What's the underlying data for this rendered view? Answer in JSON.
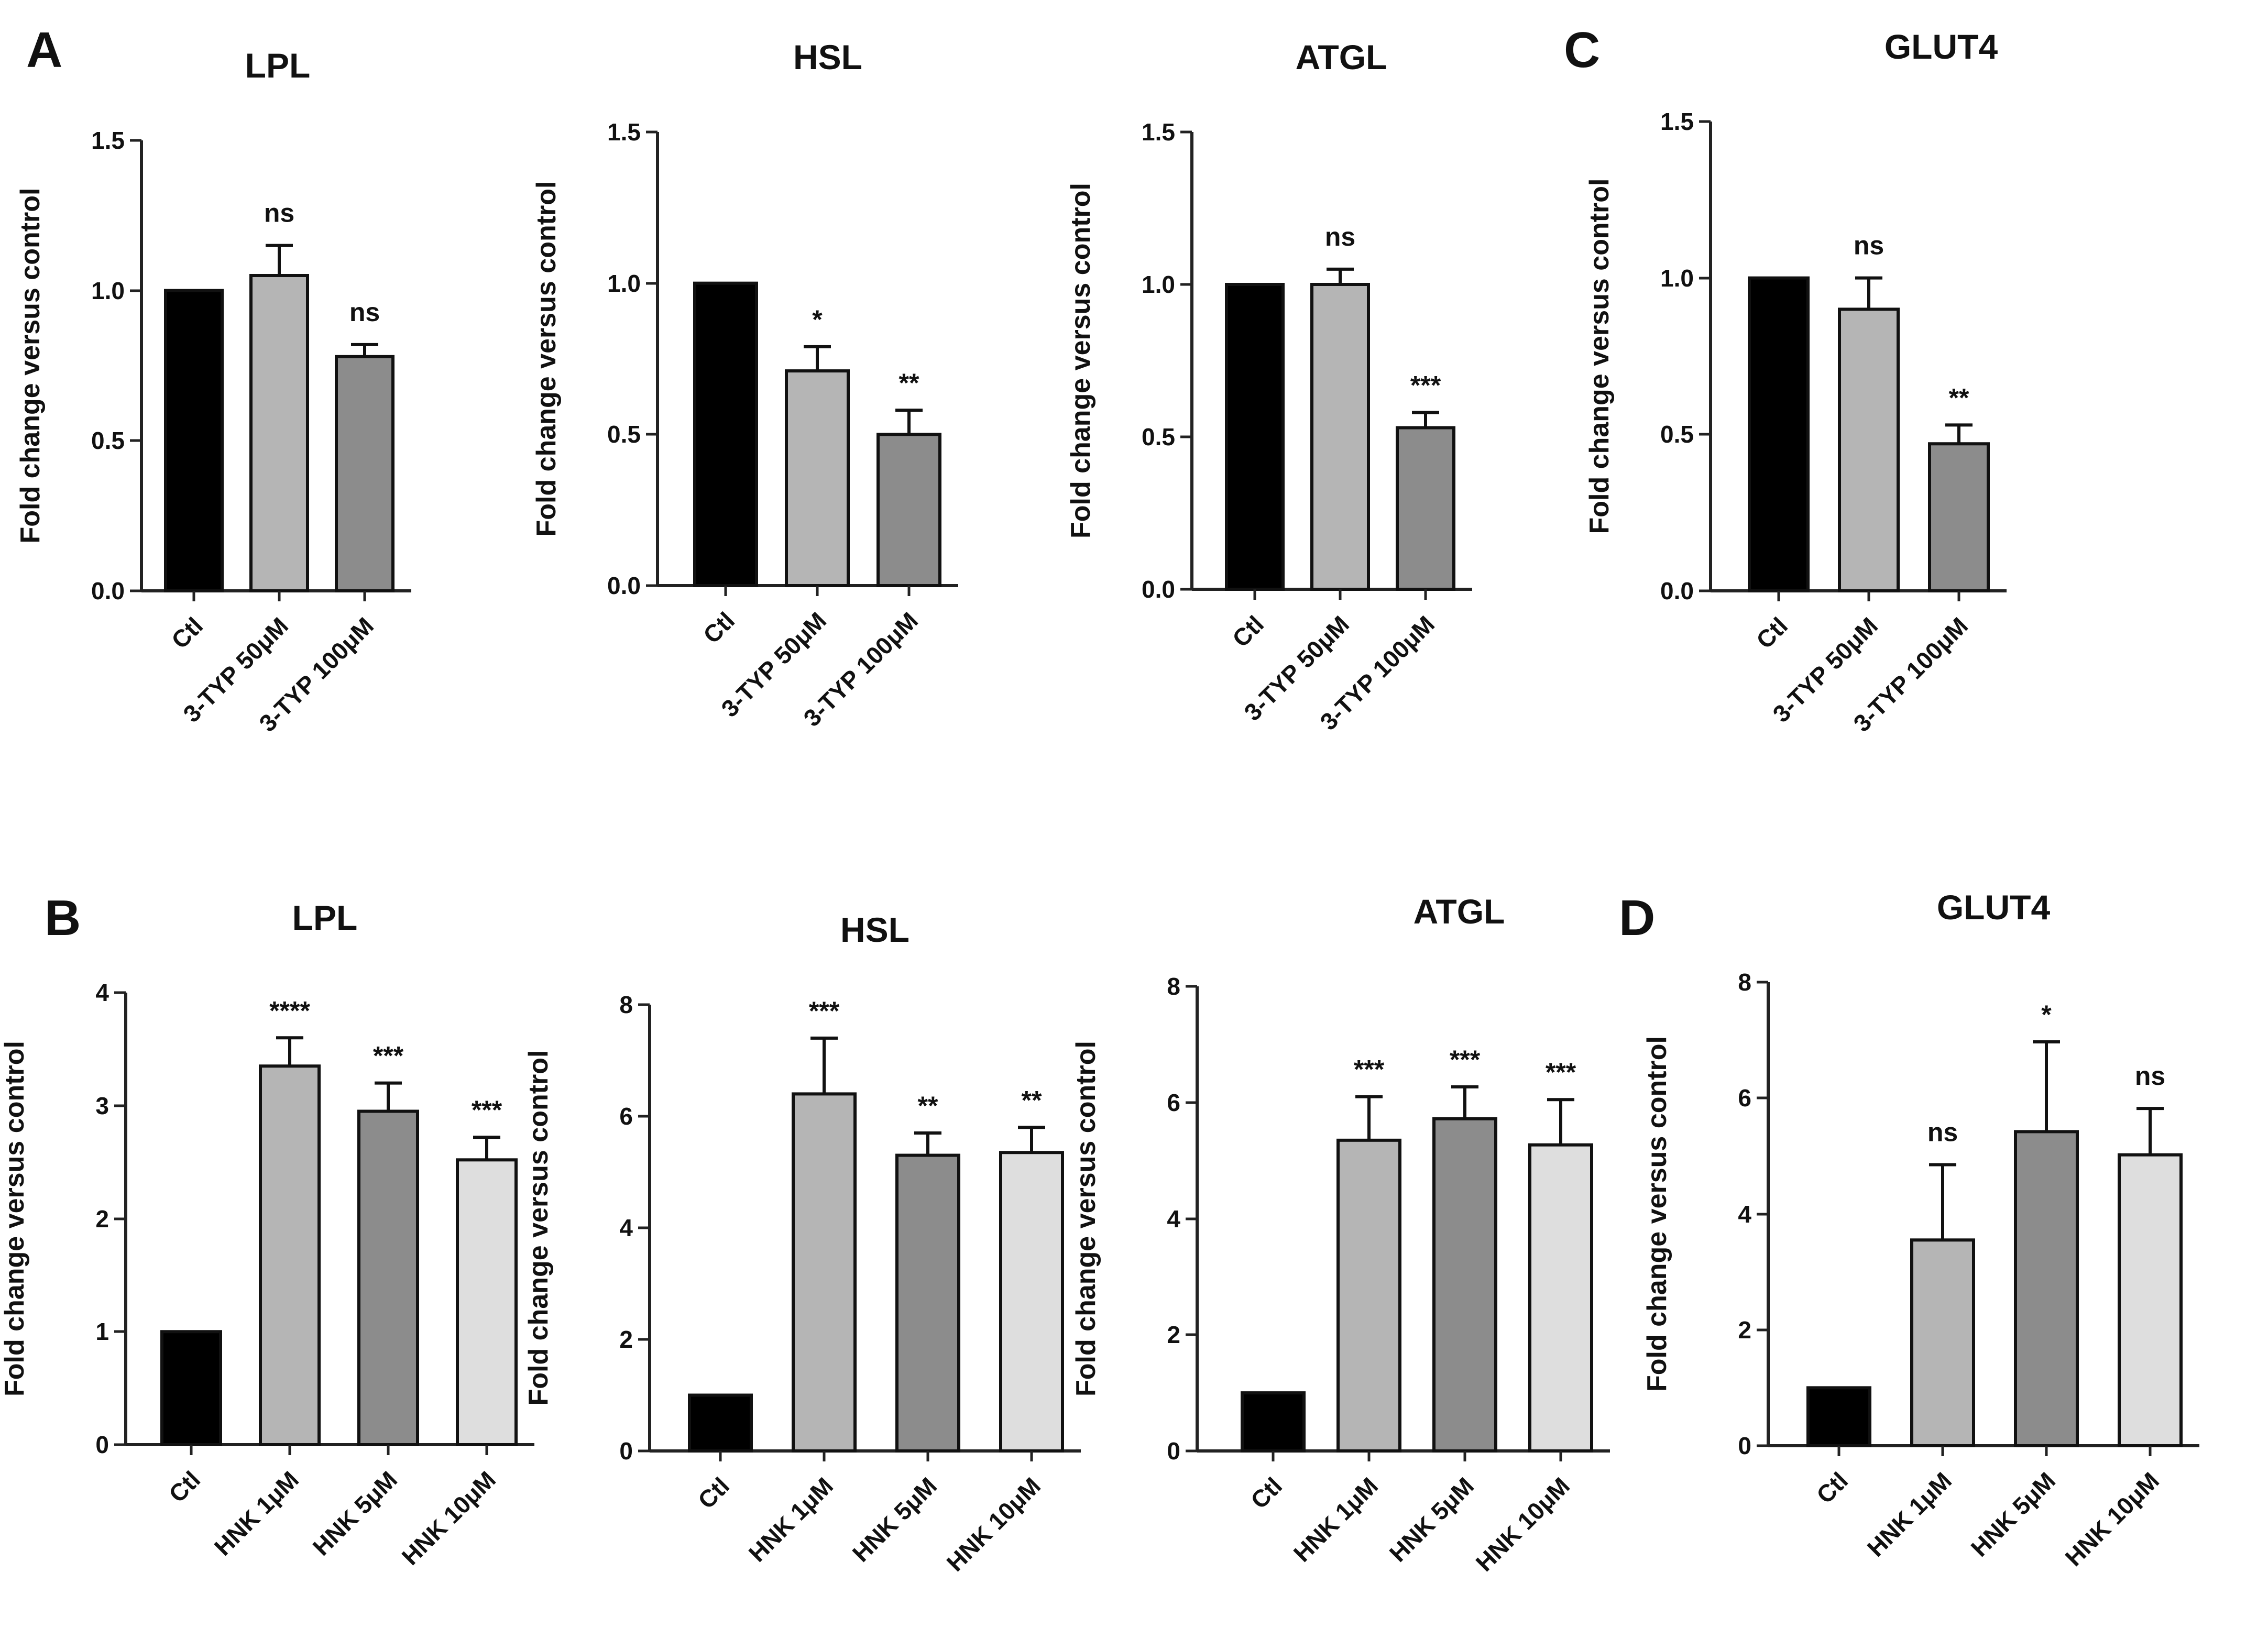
{
  "panel_letters": [
    "A",
    "B",
    "C",
    "D"
  ],
  "chart_data": [
    {
      "panel": "A",
      "type": "bar",
      "title": "LPL",
      "ylabel": "Fold change versus control",
      "ylim": [
        0,
        1.5
      ],
      "yticks": [
        "0.0",
        "0.5",
        "1.0",
        "1.5"
      ],
      "categories": [
        "Ctl",
        "3-TYP 50μM",
        "3-TYP 100μM"
      ],
      "values": [
        1.0,
        1.05,
        0.78
      ],
      "errors": [
        0,
        0.1,
        0.04
      ],
      "significance": [
        "",
        "ns",
        "ns"
      ],
      "colors": [
        "#000000",
        "#b5b5b5",
        "#8c8c8c"
      ]
    },
    {
      "panel": "A",
      "type": "bar",
      "title": "HSL",
      "ylabel": "Fold change versus control",
      "ylim": [
        0,
        1.5
      ],
      "yticks": [
        "0.0",
        "0.5",
        "1.0",
        "1.5"
      ],
      "categories": [
        "Ctl",
        "3-TYP 50μM",
        "3-TYP 100μM"
      ],
      "values": [
        1.0,
        0.71,
        0.5
      ],
      "errors": [
        0,
        0.08,
        0.08
      ],
      "significance": [
        "",
        "*",
        "**"
      ],
      "colors": [
        "#000000",
        "#b5b5b5",
        "#8c8c8c"
      ]
    },
    {
      "panel": "A",
      "type": "bar",
      "title": "ATGL",
      "ylabel": "Fold change versus control",
      "ylim": [
        0,
        1.5
      ],
      "yticks": [
        "0.0",
        "0.5",
        "1.0",
        "1.5"
      ],
      "categories": [
        "Ctl",
        "3-TYP 50μM",
        "3-TYP 100μM"
      ],
      "values": [
        1.0,
        1.0,
        0.53
      ],
      "errors": [
        0,
        0.05,
        0.05
      ],
      "significance": [
        "",
        "ns",
        "***"
      ],
      "colors": [
        "#000000",
        "#b5b5b5",
        "#8c8c8c"
      ]
    },
    {
      "panel": "C",
      "type": "bar",
      "title": "GLUT4",
      "ylabel": "Fold change versus control",
      "ylim": [
        0,
        1.5
      ],
      "yticks": [
        "0.0",
        "0.5",
        "1.0",
        "1.5"
      ],
      "categories": [
        "Ctl",
        "3-TYP 50μM",
        "3-TYP 100μM"
      ],
      "values": [
        1.0,
        0.9,
        0.47
      ],
      "errors": [
        0,
        0.1,
        0.06
      ],
      "significance": [
        "",
        "ns",
        "**"
      ],
      "colors": [
        "#000000",
        "#b5b5b5",
        "#8c8c8c"
      ]
    },
    {
      "panel": "B",
      "type": "bar",
      "title": "LPL",
      "ylabel": "Fold change versus control",
      "ylim": [
        0,
        4
      ],
      "yticks": [
        "0",
        "1",
        "2",
        "3",
        "4"
      ],
      "categories": [
        "Ctl",
        "HNK 1μM",
        "HNK 5μM",
        "HNK 10μM"
      ],
      "values": [
        1.0,
        3.35,
        2.95,
        2.52
      ],
      "errors": [
        0,
        0.25,
        0.25,
        0.2
      ],
      "significance": [
        "",
        "****",
        "***",
        "***"
      ],
      "colors": [
        "#000000",
        "#b5b5b5",
        "#8c8c8c",
        "#dedede"
      ]
    },
    {
      "panel": "B",
      "type": "bar",
      "title": "HSL",
      "ylabel": "Fold change versus control",
      "ylim": [
        0,
        8
      ],
      "yticks": [
        "0",
        "2",
        "4",
        "6",
        "8"
      ],
      "categories": [
        "Ctl",
        "HNK 1μM",
        "HNK 5μM",
        "HNK 10μM"
      ],
      "values": [
        1.0,
        6.4,
        5.3,
        5.35
      ],
      "errors": [
        0,
        1.0,
        0.4,
        0.45
      ],
      "significance": [
        "",
        "***",
        "**",
        "**"
      ],
      "colors": [
        "#000000",
        "#b5b5b5",
        "#8c8c8c",
        "#dedede"
      ]
    },
    {
      "panel": "B",
      "type": "bar",
      "title": "ATGL",
      "ylabel": "Fold change versus control",
      "ylim": [
        0,
        8
      ],
      "yticks": [
        "0",
        "2",
        "4",
        "6",
        "8"
      ],
      "categories": [
        "Ctl",
        "HNK 1μM",
        "HNK 5μM",
        "HNK 10μM"
      ],
      "values": [
        1.0,
        5.35,
        5.72,
        5.27
      ],
      "errors": [
        0,
        0.75,
        0.55,
        0.78
      ],
      "significance": [
        "",
        "***",
        "***",
        "***"
      ],
      "colors": [
        "#000000",
        "#b5b5b5",
        "#8c8c8c",
        "#dedede"
      ]
    },
    {
      "panel": "D",
      "type": "bar",
      "title": "GLUT4",
      "ylabel": "Fold change versus control",
      "ylim": [
        0,
        8
      ],
      "yticks": [
        "0",
        "2",
        "4",
        "6",
        "8"
      ],
      "categories": [
        "Ctl",
        "HNK 1μM",
        "HNK 5μM",
        "HNK 10μM"
      ],
      "values": [
        1.0,
        3.55,
        5.42,
        5.02
      ],
      "errors": [
        0,
        1.3,
        1.55,
        0.8
      ],
      "significance": [
        "",
        "ns",
        "*",
        "ns"
      ],
      "colors": [
        "#000000",
        "#b5b5b5",
        "#8c8c8c",
        "#dedede"
      ]
    }
  ]
}
